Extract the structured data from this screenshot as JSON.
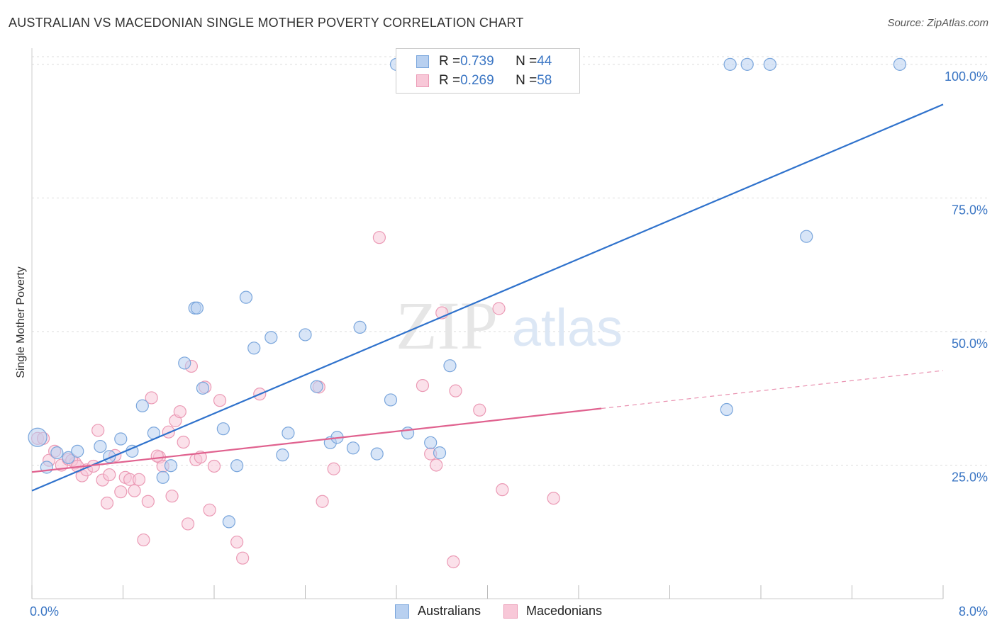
{
  "title": "AUSTRALIAN VS MACEDONIAN SINGLE MOTHER POVERTY CORRELATION CHART",
  "source": "Source: ZipAtlas.com",
  "watermark": {
    "zip": "ZIP",
    "atlas": "atlas"
  },
  "legend": {
    "rows": [
      {
        "r_label": "R = ",
        "r_value": "0.739",
        "n_label": "N = ",
        "n_value": "44"
      },
      {
        "r_label": "R = ",
        "r_value": "0.269",
        "n_label": "N = ",
        "n_value": "58"
      }
    ]
  },
  "bottom_legend": [
    "Australians",
    "Macedonians"
  ],
  "colors": {
    "australians_fill": "#b8d0f0",
    "australians_stroke": "#7aa6dc",
    "australians_line": "#2f72cc",
    "macedonians_fill": "#f8c8d8",
    "macedonians_stroke": "#eb9ab5",
    "macedonians_line": "#e0628f",
    "tick_label": "#3b76c4",
    "grid": "#dddddd"
  },
  "chart_data": {
    "type": "scatter",
    "title": "AUSTRALIAN VS MACEDONIAN SINGLE MOTHER POVERTY CORRELATION CHART",
    "xlabel": "",
    "ylabel": "Single Mother Poverty",
    "xlim": [
      0,
      8
    ],
    "ylim": [
      0,
      102.5
    ],
    "x_tick_labels": [
      "0.0%",
      "8.0%"
    ],
    "y_ticks": [
      25,
      50,
      75,
      100
    ],
    "y_tick_labels": [
      "25.0%",
      "50.0%",
      "75.0%",
      "100.0%"
    ],
    "grid": true,
    "series": [
      {
        "name": "Australians",
        "r": 0.739,
        "n": 44,
        "trend": {
          "x": [
            0,
            8
          ],
          "y": [
            20.2,
            92.5
          ]
        },
        "points": [
          [
            0.05,
            30.2
          ],
          [
            0.13,
            24.6
          ],
          [
            0.22,
            27.3
          ],
          [
            0.32,
            26.4
          ],
          [
            0.4,
            27.6
          ],
          [
            0.6,
            28.5
          ],
          [
            0.68,
            26.6
          ],
          [
            0.78,
            29.9
          ],
          [
            0.88,
            27.6
          ],
          [
            0.97,
            36.1
          ],
          [
            1.07,
            31.0
          ],
          [
            1.15,
            22.7
          ],
          [
            1.22,
            24.9
          ],
          [
            1.34,
            44.1
          ],
          [
            1.43,
            54.4
          ],
          [
            1.5,
            39.4
          ],
          [
            1.68,
            31.8
          ],
          [
            1.73,
            14.4
          ],
          [
            1.8,
            24.9
          ],
          [
            1.88,
            56.4
          ],
          [
            1.95,
            46.9
          ],
          [
            2.1,
            48.9
          ],
          [
            2.2,
            26.9
          ],
          [
            2.25,
            31.0
          ],
          [
            2.4,
            49.4
          ],
          [
            2.5,
            39.7
          ],
          [
            2.62,
            29.2
          ],
          [
            2.68,
            30.2
          ],
          [
            2.82,
            28.2
          ],
          [
            2.88,
            50.8
          ],
          [
            3.03,
            27.1
          ],
          [
            3.15,
            37.2
          ],
          [
            3.3,
            31.0
          ],
          [
            3.2,
            100.0
          ],
          [
            3.5,
            29.2
          ],
          [
            3.58,
            27.3
          ],
          [
            3.67,
            43.6
          ],
          [
            6.1,
            35.4
          ],
          [
            6.13,
            100.0
          ],
          [
            6.28,
            100.0
          ],
          [
            6.48,
            100.0
          ],
          [
            6.8,
            67.8
          ],
          [
            7.62,
            100.0
          ],
          [
            1.45,
            54.4
          ]
        ]
      },
      {
        "name": "Macedonians",
        "r": 0.269,
        "n": 58,
        "trend": {
          "x": [
            0,
            5.0
          ],
          "y": [
            23.7,
            35.6
          ]
        },
        "trend_dashed": {
          "x": [
            5.0,
            8
          ],
          "y": [
            35.6,
            42.7
          ]
        },
        "points": [
          [
            0.05,
            30.0
          ],
          [
            0.1,
            30.0
          ],
          [
            0.15,
            25.9
          ],
          [
            0.2,
            27.6
          ],
          [
            0.26,
            25.0
          ],
          [
            0.32,
            26.1
          ],
          [
            0.38,
            25.4
          ],
          [
            0.44,
            23.0
          ],
          [
            0.48,
            24.1
          ],
          [
            0.54,
            24.8
          ],
          [
            0.58,
            31.5
          ],
          [
            0.62,
            22.2
          ],
          [
            0.66,
            17.9
          ],
          [
            0.68,
            23.2
          ],
          [
            0.73,
            26.8
          ],
          [
            0.78,
            20.0
          ],
          [
            0.82,
            22.7
          ],
          [
            0.86,
            22.3
          ],
          [
            0.9,
            20.2
          ],
          [
            0.94,
            22.3
          ],
          [
            0.98,
            11.0
          ],
          [
            1.02,
            18.2
          ],
          [
            1.05,
            37.6
          ],
          [
            1.12,
            26.5
          ],
          [
            1.15,
            24.8
          ],
          [
            1.2,
            31.2
          ],
          [
            1.23,
            19.2
          ],
          [
            1.26,
            33.3
          ],
          [
            1.3,
            35.0
          ],
          [
            1.33,
            29.3
          ],
          [
            1.37,
            14.0
          ],
          [
            1.4,
            43.5
          ],
          [
            1.44,
            26.0
          ],
          [
            1.48,
            26.5
          ],
          [
            1.52,
            39.6
          ],
          [
            1.56,
            16.6
          ],
          [
            1.6,
            24.8
          ],
          [
            1.65,
            37.1
          ],
          [
            1.8,
            10.6
          ],
          [
            1.85,
            7.6
          ],
          [
            2.0,
            38.3
          ],
          [
            2.52,
            39.6
          ],
          [
            2.55,
            18.2
          ],
          [
            2.65,
            24.3
          ],
          [
            3.05,
            67.6
          ],
          [
            3.43,
            39.9
          ],
          [
            3.5,
            27.1
          ],
          [
            3.55,
            25.0
          ],
          [
            3.6,
            53.5
          ],
          [
            3.7,
            6.9
          ],
          [
            3.72,
            38.9
          ],
          [
            3.93,
            35.3
          ],
          [
            4.1,
            54.3
          ],
          [
            4.13,
            20.4
          ],
          [
            4.58,
            18.8
          ],
          [
            0.35,
            25.9
          ],
          [
            0.4,
            24.8
          ],
          [
            1.1,
            26.7
          ]
        ]
      }
    ]
  }
}
